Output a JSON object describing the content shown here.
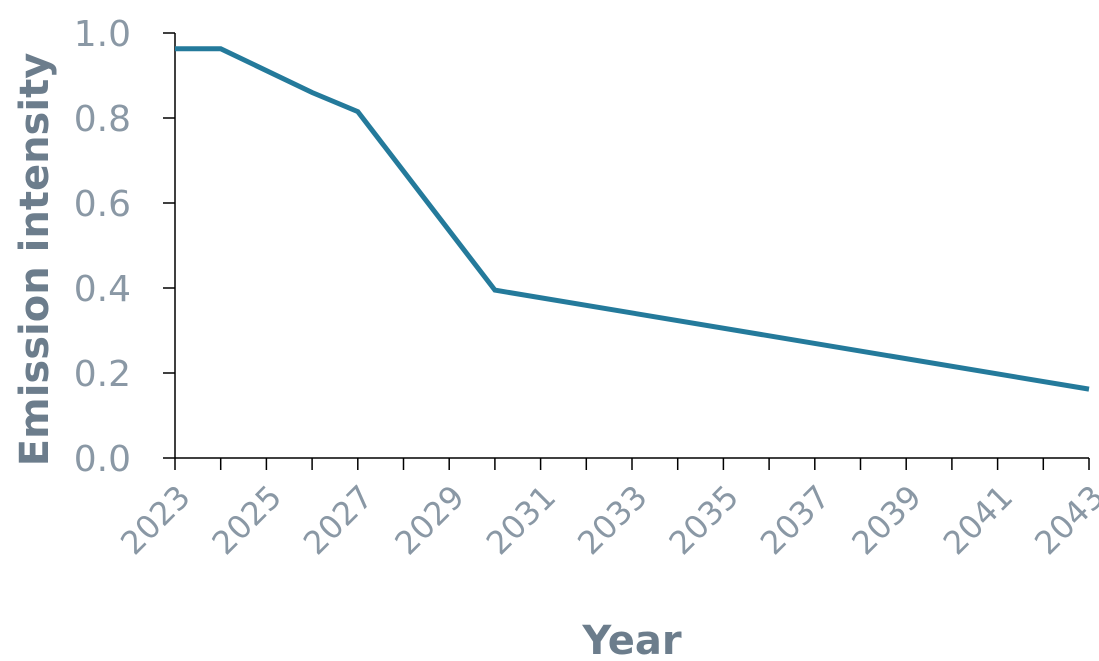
{
  "chart_data": {
    "type": "line",
    "title": "",
    "xlabel": "Year",
    "ylabel": "Emission intensity",
    "xlim": [
      2023,
      2043
    ],
    "ylim": [
      0,
      1.0
    ],
    "x_ticks": [
      2023,
      2024,
      2025,
      2026,
      2027,
      2028,
      2029,
      2030,
      2031,
      2032,
      2033,
      2034,
      2035,
      2036,
      2037,
      2038,
      2039,
      2040,
      2041,
      2042,
      2043
    ],
    "x_tick_labels": [
      "2023",
      "2025",
      "2027",
      "2029",
      "2031",
      "2033",
      "2035",
      "2037",
      "2039",
      "2041",
      "2043"
    ],
    "y_ticks": [
      0.0,
      0.2,
      0.4,
      0.6,
      0.8,
      1.0
    ],
    "y_tick_labels": [
      "0.0",
      "0.2",
      "0.4",
      "0.6",
      "0.8",
      "1.0"
    ],
    "grid": false,
    "series": [
      {
        "x": [
          2023,
          2024,
          2026,
          2027,
          2030,
          2043
        ],
        "y": [
          0.963,
          0.963,
          0.86,
          0.815,
          0.395,
          0.162
        ],
        "color": "#247a9b"
      }
    ]
  }
}
